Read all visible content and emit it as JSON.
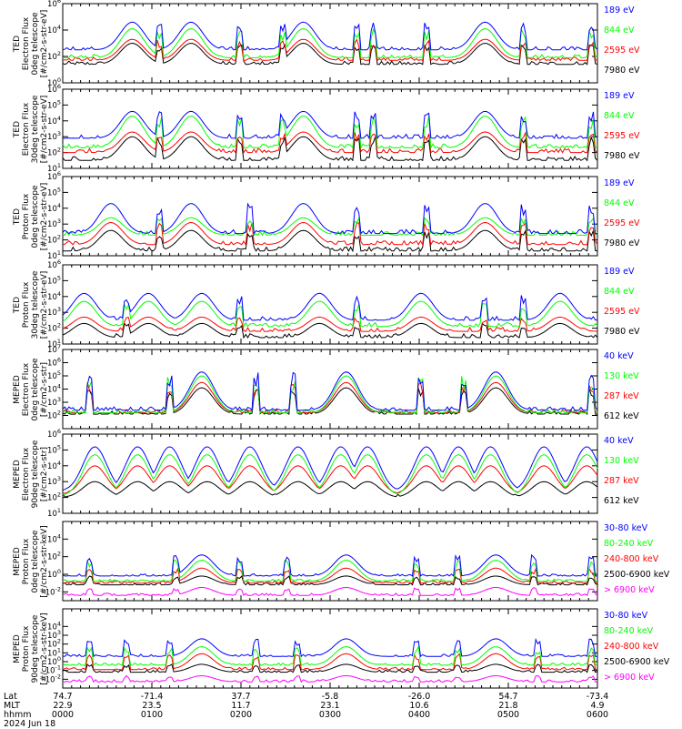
{
  "chart_data": {
    "type": "line",
    "date": "2024 Jun 18",
    "x_labels": {
      "rows": [
        "Lat",
        "MLT",
        "hhmm"
      ],
      "ticks": [
        {
          "Lat": "74.7",
          "MLT": "22.9",
          "hhmm": "0000"
        },
        {
          "Lat": "-71.4",
          "MLT": "23.5",
          "hhmm": "0100"
        },
        {
          "Lat": "37.7",
          "MLT": "11.7",
          "hhmm": "0200"
        },
        {
          "Lat": "-5.8",
          "MLT": "23.1",
          "hhmm": "0300"
        },
        {
          "Lat": "-26.0",
          "MLT": "10.6",
          "hhmm": "0400"
        },
        {
          "Lat": "54.7",
          "MLT": "21.8",
          "hhmm": "0500"
        },
        {
          "Lat": "-73.4",
          "MLT": "4.9",
          "hhmm": "0600"
        }
      ]
    },
    "panels": [
      {
        "ylabel": [
          "TED",
          "Electron Flux",
          "0deg telescope",
          "[#/cm2-s-str-eV]"
        ],
        "log": true,
        "ylim_exp": [
          0,
          6
        ],
        "tick_exps": [
          0,
          2,
          4,
          6
        ],
        "series": [
          {
            "name": "7980 eV",
            "color": "#000000",
            "base": 1.4,
            "peak": 3.0
          },
          {
            "name": "2595 eV",
            "color": "#ff0000",
            "base": 1.7,
            "peak": 3.3
          },
          {
            "name": "844 eV",
            "color": "#00ff00",
            "base": 1.9,
            "peak": 4.1
          },
          {
            "name": "189 eV",
            "color": "#0000ff",
            "base": 2.5,
            "peak": 4.6
          }
        ],
        "hump_positions": [
          0.13,
          0.24,
          0.45,
          0.79
        ],
        "spike_positions": [
          0.18,
          0.33,
          0.41,
          0.55,
          0.58,
          0.68,
          0.86,
          0.99
        ]
      },
      {
        "ylabel": [
          "TED",
          "Electron Flux",
          "30deg telescope",
          "[#/cm2-s-str-eV]"
        ],
        "log": true,
        "ylim_exp": [
          1,
          6
        ],
        "tick_exps": [
          1,
          2,
          3,
          4,
          5,
          6
        ],
        "series": [
          {
            "name": "7980 eV",
            "color": "#000000",
            "base": 1.5,
            "peak": 3.0
          },
          {
            "name": "2595 eV",
            "color": "#ff0000",
            "base": 2.0,
            "peak": 3.3
          },
          {
            "name": "844 eV",
            "color": "#00ff00",
            "base": 2.3,
            "peak": 4.3
          },
          {
            "name": "189 eV",
            "color": "#0000ff",
            "base": 2.9,
            "peak": 4.6
          }
        ],
        "hump_positions": [
          0.13,
          0.24,
          0.45,
          0.79
        ],
        "spike_positions": [
          0.18,
          0.33,
          0.41,
          0.55,
          0.58,
          0.68,
          0.86,
          0.99
        ]
      },
      {
        "ylabel": [
          "TED",
          "Proton Flux",
          "0deg telescope",
          "[#/cm2-s-str-eV]"
        ],
        "log": true,
        "ylim_exp": [
          1,
          6
        ],
        "tick_exps": [
          1,
          2,
          3,
          4,
          5,
          6
        ],
        "series": [
          {
            "name": "7980 eV",
            "color": "#000000",
            "base": 1.3,
            "peak": 2.6
          },
          {
            "name": "2595 eV",
            "color": "#ff0000",
            "base": 1.7,
            "peak": 3.1
          },
          {
            "name": "844 eV",
            "color": "#00ff00",
            "base": 2.3,
            "peak": 3.4
          },
          {
            "name": "189 eV",
            "color": "#0000ff",
            "base": 2.4,
            "peak": 4.3
          }
        ],
        "hump_positions": [
          0.09,
          0.24,
          0.45,
          0.79
        ],
        "spike_positions": [
          0.18,
          0.35,
          0.55,
          0.68,
          0.86,
          0.99
        ]
      },
      {
        "ylabel": [
          "TED",
          "Proton Flux",
          "30deg telescope",
          "[#/cm2-s-str-eV]"
        ],
        "log": true,
        "ylim_exp": [
          1,
          6
        ],
        "tick_exps": [
          1,
          2,
          3,
          4,
          5,
          6
        ],
        "series": [
          {
            "name": "7980 eV",
            "color": "#000000",
            "base": 1.4,
            "peak": 2.3
          },
          {
            "name": "2595 eV",
            "color": "#ff0000",
            "base": 1.8,
            "peak": 2.7
          },
          {
            "name": "844 eV",
            "color": "#00ff00",
            "base": 2.1,
            "peak": 3.7
          },
          {
            "name": "189 eV",
            "color": "#0000ff",
            "base": 2.5,
            "peak": 4.2
          }
        ],
        "hump_positions": [
          0.04,
          0.16,
          0.26,
          0.48,
          0.67,
          0.93
        ],
        "spike_positions": [
          0.12,
          0.33,
          0.55,
          0.79,
          0.86
        ]
      },
      {
        "ylabel": [
          "MEPED",
          "Electron Flux",
          "0deg telescope",
          "[#/cm2-s-str]"
        ],
        "log": true,
        "ylim_exp": [
          1,
          7
        ],
        "tick_exps": [
          2,
          3,
          4,
          5,
          6,
          7
        ],
        "series": [
          {
            "name": "612 keV",
            "color": "#000000",
            "base": 2.1,
            "peak": 4.1
          },
          {
            "name": "287 keV",
            "color": "#ff0000",
            "base": 2.2,
            "peak": 4.5
          },
          {
            "name": "130 keV",
            "color": "#00ff00",
            "base": 2.2,
            "peak": 5.0
          },
          {
            "name": "40 keV",
            "color": "#0000ff",
            "base": 2.4,
            "peak": 5.3
          }
        ],
        "hump_positions": [
          0.26,
          0.53,
          0.81
        ],
        "spike_positions": [
          0.05,
          0.2,
          0.36,
          0.43,
          0.67,
          0.75,
          0.99
        ]
      },
      {
        "ylabel": [
          "MEPED",
          "Electron Flux",
          "90deg telescope",
          "[#/cm2-s-str]"
        ],
        "log": true,
        "ylim_exp": [
          1,
          6
        ],
        "tick_exps": [
          1,
          2,
          3,
          4,
          5,
          6
        ],
        "series": [
          {
            "name": "612 keV",
            "color": "#000000",
            "base": 2.0,
            "peak": 3.0
          },
          {
            "name": "287 keV",
            "color": "#ff0000",
            "base": 2.2,
            "peak": 4.0
          },
          {
            "name": "130 keV",
            "color": "#00ff00",
            "base": 2.1,
            "peak": 4.7
          },
          {
            "name": "40 keV",
            "color": "#0000ff",
            "base": 2.4,
            "peak": 5.2
          }
        ],
        "hump_positions": [
          0.06,
          0.14,
          0.2,
          0.27,
          0.35,
          0.44,
          0.52,
          0.57,
          0.68,
          0.74,
          0.8,
          0.9,
          0.98
        ],
        "spike_positions": []
      },
      {
        "ylabel": [
          "MEPED",
          "Proton Flux",
          "0deg telescope",
          "[#/cm2-s-str-keV]"
        ],
        "log": true,
        "ylim_exp": [
          -3,
          6
        ],
        "tick_exps": [
          -2,
          0,
          2,
          4
        ],
        "series": [
          {
            "name": "> 6900 keV",
            "color": "#ff00ff",
            "base": -2.4,
            "peak": -1.5
          },
          {
            "name": "2500-6900 keV",
            "color": "#000000",
            "base": -1.2,
            "peak": -0.2
          },
          {
            "name": "240-800 keV",
            "color": "#ff0000",
            "base": -1.0,
            "peak": 0.7
          },
          {
            "name": "80-240 keV",
            "color": "#00ff00",
            "base": -0.8,
            "peak": 1.6
          },
          {
            "name": "30-80 keV",
            "color": "#0000ff",
            "base": -0.2,
            "peak": 2.2
          }
        ],
        "hump_positions": [
          0.26,
          0.53,
          0.81
        ],
        "spike_positions": [
          0.05,
          0.21,
          0.33,
          0.42,
          0.66,
          0.74,
          0.88,
          0.99
        ]
      },
      {
        "ylabel": [
          "MEPED",
          "Proton Flux",
          "90deg telescope",
          "[#/cm2-s-str-keV]"
        ],
        "log": true,
        "ylim_exp": [
          -3,
          6
        ],
        "tick_exps": [
          -2,
          -1,
          0,
          1,
          2,
          3,
          4
        ],
        "series": [
          {
            "name": "> 6900 keV",
            "color": "#ff00ff",
            "base": -2.3,
            "peak": -1.6
          },
          {
            "name": "2500-6900 keV",
            "color": "#000000",
            "base": -1.2,
            "peak": -0.3
          },
          {
            "name": "240-800 keV",
            "color": "#ff0000",
            "base": -0.9,
            "peak": 0.9
          },
          {
            "name": "80-240 keV",
            "color": "#00ff00",
            "base": -0.4,
            "peak": 1.7
          },
          {
            "name": "30-80 keV",
            "color": "#0000ff",
            "base": 0.6,
            "peak": 2.6
          }
        ],
        "hump_positions": [
          0.26,
          0.53,
          0.81
        ],
        "spike_positions": [
          0.05,
          0.12,
          0.2,
          0.36,
          0.44,
          0.66,
          0.74,
          0.89,
          0.99
        ]
      }
    ]
  }
}
